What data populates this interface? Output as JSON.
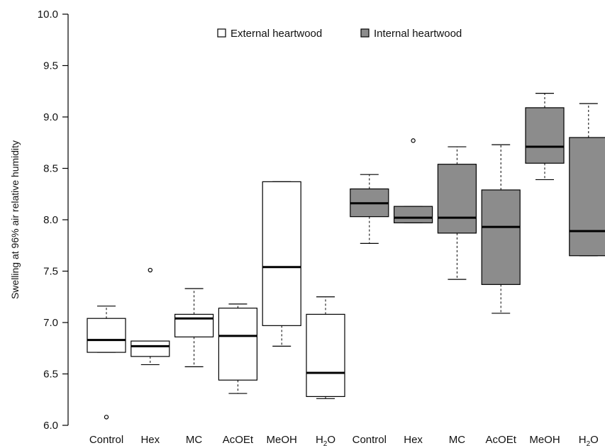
{
  "chart_data": {
    "type": "box",
    "title": "",
    "xlabel": "",
    "ylabel": "Swelling at 96% air relative humidity",
    "ylim": [
      6.0,
      10.0
    ],
    "yticks": [
      "6.0",
      "6.5",
      "7.0",
      "7.5",
      "8.0",
      "8.5",
      "9.0",
      "9.5",
      "10.0"
    ],
    "legend": {
      "position": "top-center",
      "items": [
        {
          "label": "External heartwood",
          "color": "#ffffff"
        },
        {
          "label": "Internal heartwood",
          "color": "#8c8c8c"
        }
      ]
    },
    "categories": [
      {
        "label": "Control",
        "label_sub": "",
        "group": "External heartwood",
        "whisker_low": 6.71,
        "q1": 6.71,
        "median": 6.83,
        "q3": 7.04,
        "whisker_high": 7.16,
        "outliers": [
          6.08
        ]
      },
      {
        "label": "Hex",
        "label_sub": "",
        "group": "External heartwood",
        "whisker_low": 6.59,
        "q1": 6.67,
        "median": 6.77,
        "q3": 6.82,
        "whisker_high": 6.82,
        "outliers": [
          7.51
        ]
      },
      {
        "label": "MC",
        "label_sub": "",
        "group": "External heartwood",
        "whisker_low": 6.57,
        "q1": 6.86,
        "median": 7.04,
        "q3": 7.08,
        "whisker_high": 7.33,
        "outliers": []
      },
      {
        "label": "AcOEt",
        "label_sub": "",
        "group": "External heartwood",
        "whisker_low": 6.31,
        "q1": 6.44,
        "median": 6.87,
        "q3": 7.14,
        "whisker_high": 7.18,
        "outliers": []
      },
      {
        "label": "MeOH",
        "label_sub": "",
        "group": "External heartwood",
        "whisker_low": 6.77,
        "q1": 6.97,
        "median": 7.54,
        "q3": 8.37,
        "whisker_high": 8.37,
        "outliers": []
      },
      {
        "label": "H",
        "label_sub": "2",
        "label_tail": "O",
        "group": "External heartwood",
        "whisker_low": 6.26,
        "q1": 6.28,
        "median": 6.51,
        "q3": 7.08,
        "whisker_high": 7.25,
        "outliers": []
      },
      {
        "label": "Control",
        "label_sub": "",
        "group": "Internal heartwood",
        "whisker_low": 7.77,
        "q1": 8.03,
        "median": 8.16,
        "q3": 8.3,
        "whisker_high": 8.44,
        "outliers": []
      },
      {
        "label": "Hex",
        "label_sub": "",
        "group": "Internal heartwood",
        "whisker_low": 7.97,
        "q1": 7.97,
        "median": 8.02,
        "q3": 8.13,
        "whisker_high": 8.13,
        "outliers": [
          8.77
        ]
      },
      {
        "label": "MC",
        "label_sub": "",
        "group": "Internal heartwood",
        "whisker_low": 7.42,
        "q1": 7.87,
        "median": 8.02,
        "q3": 8.54,
        "whisker_high": 8.71,
        "outliers": []
      },
      {
        "label": "AcOEt",
        "label_sub": "",
        "group": "Internal heartwood",
        "whisker_low": 7.09,
        "q1": 7.37,
        "median": 7.93,
        "q3": 8.29,
        "whisker_high": 8.73,
        "outliers": []
      },
      {
        "label": "MeOH",
        "label_sub": "",
        "group": "Internal heartwood",
        "whisker_low": 8.39,
        "q1": 8.55,
        "median": 8.71,
        "q3": 9.09,
        "whisker_high": 9.23,
        "outliers": []
      },
      {
        "label": "H",
        "label_sub": "2",
        "label_tail": "O",
        "group": "Internal heartwood",
        "whisker_low": 7.65,
        "q1": 7.65,
        "median": 7.89,
        "q3": 8.8,
        "whisker_high": 9.13,
        "outliers": []
      }
    ],
    "grid": false
  }
}
